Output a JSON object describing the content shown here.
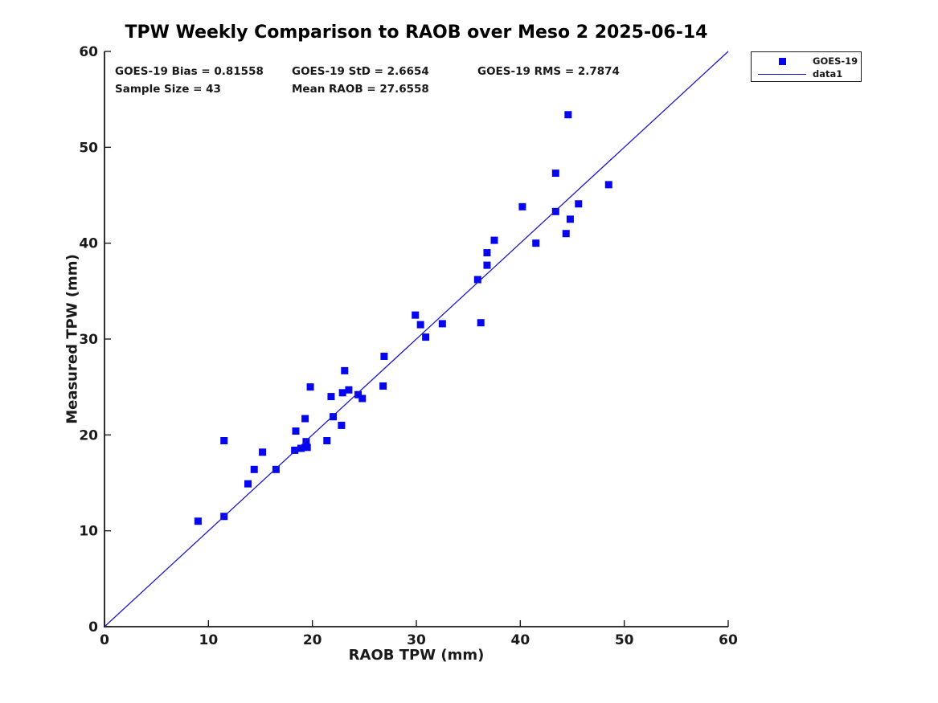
{
  "stats": {
    "bias": "GOES-19 Bias = 0.81558",
    "std": "GOES-19 StD = 2.6654",
    "rms": "GOES-19 RMS = 2.7874",
    "sample_size": "Sample Size = 43",
    "mean_raob": "Mean RAOB = 27.6558"
  },
  "legend": {
    "items": [
      {
        "label": "GOES-19",
        "swatch": "blue-square-marker"
      },
      {
        "label": "data1",
        "swatch": "blue-line"
      }
    ]
  },
  "colors": {
    "marker": "#0505f0",
    "line": "#1a1acd",
    "axis": "#1a1a1a",
    "text": "#000000"
  },
  "chart_data": {
    "type": "scatter",
    "title": "TPW Weekly Comparison to RAOB over Meso 2 2025-06-14",
    "xlabel": "RAOB TPW (mm)",
    "ylabel": "Measured TPW (mm)",
    "xlim": [
      0,
      60
    ],
    "ylim": [
      0,
      60
    ],
    "xticks": [
      0,
      10,
      20,
      30,
      40,
      50,
      60
    ],
    "yticks": [
      0,
      10,
      20,
      30,
      40,
      50,
      60
    ],
    "grid": false,
    "legend_position": "outside-top-right",
    "series": [
      {
        "name": "GOES-19",
        "type": "scatter",
        "marker": "square",
        "color": "#0505f0",
        "points": [
          [
            9.0,
            11.0
          ],
          [
            11.5,
            11.5
          ],
          [
            11.5,
            19.4
          ],
          [
            13.8,
            14.9
          ],
          [
            14.4,
            16.4
          ],
          [
            15.2,
            18.2
          ],
          [
            16.5,
            16.4
          ],
          [
            18.3,
            18.4
          ],
          [
            18.4,
            20.4
          ],
          [
            18.9,
            18.6
          ],
          [
            19.3,
            21.7
          ],
          [
            19.4,
            19.3
          ],
          [
            19.5,
            18.7
          ],
          [
            19.8,
            25.0
          ],
          [
            21.4,
            19.4
          ],
          [
            21.8,
            24.0
          ],
          [
            22.0,
            21.9
          ],
          [
            22.8,
            21.0
          ],
          [
            22.9,
            24.4
          ],
          [
            23.1,
            26.7
          ],
          [
            23.5,
            24.7
          ],
          [
            24.4,
            24.2
          ],
          [
            24.8,
            23.8
          ],
          [
            26.8,
            25.1
          ],
          [
            26.9,
            28.2
          ],
          [
            29.9,
            32.5
          ],
          [
            30.4,
            31.5
          ],
          [
            30.9,
            30.2
          ],
          [
            32.5,
            31.6
          ],
          [
            35.9,
            36.2
          ],
          [
            36.2,
            31.7
          ],
          [
            36.8,
            37.7
          ],
          [
            36.8,
            39.0
          ],
          [
            37.5,
            40.3
          ],
          [
            40.2,
            43.8
          ],
          [
            41.5,
            40.0
          ],
          [
            43.4,
            43.3
          ],
          [
            43.4,
            47.3
          ],
          [
            44.4,
            41.0
          ],
          [
            44.6,
            53.4
          ],
          [
            44.8,
            42.5
          ],
          [
            45.6,
            44.1
          ],
          [
            48.5,
            46.1
          ]
        ]
      },
      {
        "name": "data1",
        "type": "line",
        "color": "#1a1acd",
        "x": [
          0,
          60
        ],
        "y": [
          0,
          60
        ]
      }
    ]
  }
}
